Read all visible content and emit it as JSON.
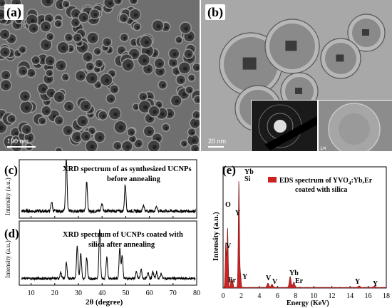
{
  "panel_a": {
    "label": "(a)",
    "scale_text": "100 nm"
  },
  "panel_b": {
    "label": "(b)",
    "scale_text": "20 nm",
    "inset_tag": "1/4"
  },
  "panel_cd": {
    "label_c": "(c)",
    "label_d": "(d)",
    "c_title_line1": "XRD spectrum of as synthesized UCNPs",
    "c_title_line2": "before annealing",
    "d_title_line1": "XRD spectrum of UCNPs coated with",
    "d_title_line2": "silica after annealing",
    "ylabel": "Intensity (a.u.)",
    "xlabel": "2θ (degree)",
    "x_ticks": [
      "10",
      "20",
      "30",
      "40",
      "50",
      "60",
      "70",
      "80"
    ]
  },
  "panel_e": {
    "label": "(e)",
    "legend_line1": "EDS spectrum of YVO",
    "legend_sub": "4",
    "legend_tail": ":Yb,Er",
    "legend_line2": "coated with silica",
    "ylabel": "Intensity (a.u.)",
    "xlabel": "Energy (KeV)",
    "x_ticks": [
      "0",
      "2",
      "4",
      "6",
      "8",
      "10",
      "12",
      "14",
      "16",
      "18"
    ],
    "peak_labels": {
      "yb_top": "Yb",
      "si": "Si",
      "o": "O",
      "y1": "Y",
      "v1": "V",
      "er1": "Er",
      "y2": "Y",
      "v2": "V",
      "v3": "V",
      "yb2": "Yb",
      "er2": "Er",
      "y3": "Y",
      "y4": "Y"
    },
    "fill_color": "#cc2222"
  },
  "chart_data": [
    {
      "type": "line",
      "xlabel": "2θ (degree)",
      "ylabel": "Intensity (a.u.)",
      "xlim": [
        5,
        80
      ],
      "series": [
        {
          "name": "XRD spectrum of as synthesized UCNPs before annealing",
          "x": [
            18.7,
            24.9,
            33.5,
            40.0,
            49.8,
            57.5,
            63.0
          ],
          "y": [
            0.18,
            1.0,
            0.55,
            0.16,
            0.5,
            0.12,
            0.1
          ]
        },
        {
          "name": "XRD spectrum of UCNPs coated with silica after annealing",
          "x": [
            22.5,
            24.9,
            29.5,
            31.0,
            33.5,
            39.0,
            42.0,
            47.5,
            48.5,
            54.5,
            56.5,
            59.5,
            61.5,
            63.0,
            65.0
          ],
          "y": [
            0.12,
            0.3,
            0.62,
            0.5,
            0.4,
            0.95,
            0.42,
            0.6,
            0.45,
            0.12,
            0.18,
            0.12,
            0.13,
            0.12,
            0.1
          ]
        }
      ]
    },
    {
      "type": "line",
      "xlabel": "Energy (KeV)",
      "ylabel": "Intensity (a.u.)",
      "xlim": [
        0,
        18
      ],
      "series": [
        {
          "name": "EDS spectrum of YVO4:Yb,Er coated with silica",
          "x": [
            0.3,
            0.5,
            0.9,
            1.05,
            1.74,
            1.92,
            4.95,
            5.4,
            7.4,
            7.8,
            15.0,
            16.7
          ],
          "y": [
            0.42,
            0.56,
            0.08,
            0.06,
            1.0,
            0.12,
            0.04,
            0.03,
            0.1,
            0.05,
            0.015,
            0.012
          ]
        }
      ]
    }
  ]
}
